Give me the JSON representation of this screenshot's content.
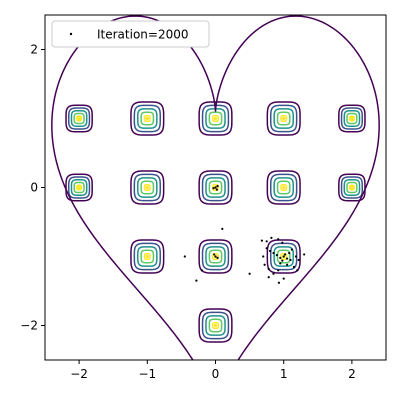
{
  "chart_data": {
    "type": "scatter",
    "title": "",
    "xlabel": "",
    "ylabel": "",
    "xlim": [
      -2.5,
      2.5
    ],
    "ylim": [
      -2.5,
      2.5
    ],
    "x_ticks": [
      -2,
      -1,
      0,
      1,
      2
    ],
    "y_ticks": [
      -2,
      0,
      2
    ],
    "x_tick_labels": [
      "−2",
      "−1",
      "0",
      "1",
      "2"
    ],
    "y_tick_labels": [
      "−2",
      "0",
      "2"
    ],
    "grid": false,
    "legend": {
      "placement": "top-left",
      "entries": [
        "Iteration=2000"
      ]
    },
    "colors": {
      "heart_boundary": "#440154",
      "contour_levels": [
        "#440154",
        "#3b528b",
        "#21918c",
        "#5ec962",
        "#fde725"
      ],
      "points": "#000000"
    },
    "contour_centers": [
      [
        -2,
        1
      ],
      [
        -1,
        1
      ],
      [
        0,
        1
      ],
      [
        1,
        1
      ],
      [
        2,
        1
      ],
      [
        -2,
        0
      ],
      [
        -1,
        0
      ],
      [
        0,
        0
      ],
      [
        1,
        0
      ],
      [
        2,
        0
      ],
      [
        -1,
        -1
      ],
      [
        0,
        -1
      ],
      [
        1,
        -1
      ],
      [
        0,
        -2
      ]
    ],
    "series": [
      {
        "name": "Iteration=2000",
        "marker": "point",
        "points": [
          [
            0.0,
            0.0
          ],
          [
            0.03,
            0.02
          ],
          [
            -0.03,
            -0.01
          ],
          [
            0.02,
            -0.03
          ],
          [
            0.1,
            -0.6
          ],
          [
            -0.45,
            -1.0
          ],
          [
            -0.2,
            -1.2
          ],
          [
            -0.28,
            -1.35
          ],
          [
            0.5,
            -1.25
          ],
          [
            0.0,
            -1.0
          ],
          [
            0.03,
            -1.02
          ],
          [
            -0.02,
            -0.97
          ],
          [
            0.68,
            -0.77
          ],
          [
            0.75,
            -0.78
          ],
          [
            0.82,
            -0.73
          ],
          [
            0.92,
            -0.75
          ],
          [
            0.98,
            -0.8
          ],
          [
            0.75,
            -0.88
          ],
          [
            0.8,
            -0.92
          ],
          [
            0.85,
            -0.95
          ],
          [
            0.9,
            -0.98
          ],
          [
            0.95,
            -1.02
          ],
          [
            1.0,
            -1.0
          ],
          [
            1.02,
            -0.97
          ],
          [
            1.05,
            -1.03
          ],
          [
            0.98,
            -1.06
          ],
          [
            1.08,
            -0.95
          ],
          [
            1.1,
            -1.05
          ],
          [
            1.12,
            -0.9
          ],
          [
            1.18,
            -1.0
          ],
          [
            1.22,
            -1.05
          ],
          [
            1.3,
            -0.97
          ],
          [
            0.7,
            -1.0
          ],
          [
            0.72,
            -1.12
          ],
          [
            0.78,
            -1.18
          ],
          [
            0.85,
            -1.25
          ],
          [
            0.92,
            -1.2
          ],
          [
            0.95,
            -1.1
          ],
          [
            1.05,
            -1.12
          ],
          [
            1.15,
            -1.15
          ],
          [
            1.0,
            -1.32
          ],
          [
            0.93,
            -1.38
          ],
          [
            0.78,
            -1.3
          ],
          [
            1.2,
            -1.2
          ]
        ]
      }
    ]
  }
}
